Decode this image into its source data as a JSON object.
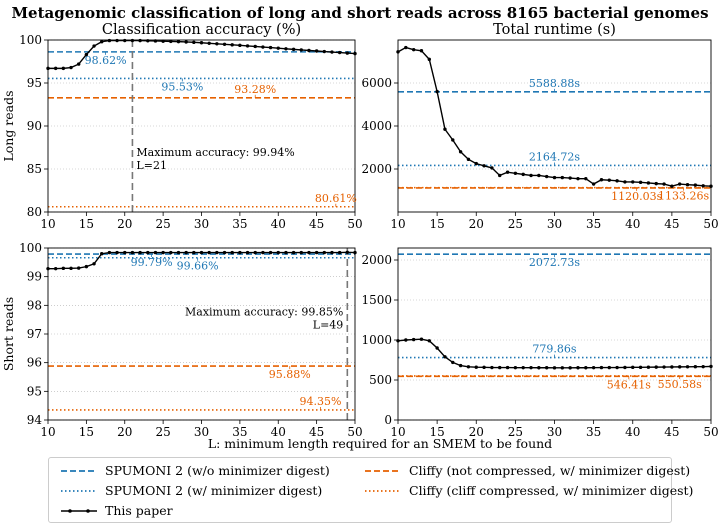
{
  "figure": {
    "title": "Metagenomic classification of long and short reads across 8165 bacterial genomes",
    "xlabel": "L: minimum length required for an SMEM to be found",
    "col_titles": [
      "Classification accuracy (%)",
      "Total runtime (s)"
    ],
    "row_labels": [
      "Long reads",
      "Short reads"
    ]
  },
  "colors": {
    "spumoni": "#1f77b4",
    "cliffy": "#e66100",
    "paper": "#000000",
    "grid": "#b0b0b0"
  },
  "legend": [
    {
      "label": "SPUMONI 2 (w/o minimizer digest)",
      "color": "#1f77b4",
      "style": "dashed"
    },
    {
      "label": "Cliffy (not compressed, w/ minimizer digest)",
      "color": "#e66100",
      "style": "dashed"
    },
    {
      "label": "SPUMONI 2 (w/  minimizer digest)",
      "color": "#1f77b4",
      "style": "dotted"
    },
    {
      "label": "Cliffy (cliff compressed, w/ minimizer digest)",
      "color": "#e66100",
      "style": "dotted"
    },
    {
      "label": "This paper",
      "color": "#000000",
      "style": "line-marker"
    }
  ],
  "chart_data": [
    {
      "type": "line",
      "panel": "long-accuracy",
      "title": "Classification accuracy (%)",
      "xlim": [
        10,
        50
      ],
      "ylim": [
        80,
        100
      ],
      "xticks": [
        10,
        15,
        20,
        25,
        30,
        35,
        40,
        45,
        50
      ],
      "yticks": [
        80,
        85,
        90,
        95,
        100
      ],
      "x": [
        10,
        11,
        12,
        13,
        14,
        15,
        16,
        17,
        18,
        19,
        20,
        21,
        22,
        23,
        24,
        25,
        26,
        27,
        28,
        29,
        30,
        31,
        32,
        33,
        34,
        35,
        36,
        37,
        38,
        39,
        40,
        41,
        42,
        43,
        44,
        45,
        46,
        47,
        48,
        49,
        50
      ],
      "series": [
        {
          "name": "This paper",
          "values": [
            96.7,
            96.7,
            96.7,
            96.8,
            97.2,
            98.3,
            99.3,
            99.8,
            99.93,
            99.94,
            99.94,
            99.94,
            99.93,
            99.91,
            99.89,
            99.86,
            99.84,
            99.81,
            99.77,
            99.73,
            99.68,
            99.62,
            99.56,
            99.5,
            99.44,
            99.38,
            99.31,
            99.25,
            99.18,
            99.12,
            99.05,
            98.98,
            98.91,
            98.85,
            98.78,
            98.72,
            98.66,
            98.6,
            98.54,
            98.48,
            98.42
          ]
        }
      ],
      "hlines": [
        {
          "name": "SPUMONI 2 (w/o minimizer digest)",
          "value": 98.62,
          "label": "98.62%",
          "style": "dashed",
          "color": "#1f77b4",
          "label_x": 17.5,
          "label_pos": "below"
        },
        {
          "name": "SPUMONI 2 (w/ minimizer digest)",
          "value": 95.53,
          "label": "95.53%",
          "style": "dotted",
          "color": "#1f77b4",
          "label_x": 27.5,
          "label_pos": "below"
        },
        {
          "name": "Cliffy (not compressed)",
          "value": 93.28,
          "label": "93.28%",
          "style": "dashed",
          "color": "#e66100",
          "label_x": 37.0,
          "label_pos": "above"
        },
        {
          "name": "Cliffy (cliff compressed)",
          "value": 80.61,
          "label": "80.61%",
          "style": "dotted",
          "color": "#e66100",
          "label_x": 47.5,
          "label_pos": "above"
        }
      ],
      "vline": {
        "x": 21,
        "label_lines": [
          "Maximum accuracy: 99.94%",
          "L=21"
        ],
        "label_side": "right",
        "label_y": 86.5
      }
    },
    {
      "type": "line",
      "panel": "long-runtime",
      "title": "Total runtime (s)",
      "xlim": [
        10,
        50
      ],
      "ylim": [
        0,
        8000
      ],
      "xticks": [
        10,
        15,
        20,
        25,
        30,
        35,
        40,
        45,
        50
      ],
      "yticks": [
        2000,
        4000,
        6000
      ],
      "x": [
        10,
        11,
        12,
        13,
        14,
        15,
        16,
        17,
        18,
        19,
        20,
        21,
        22,
        23,
        24,
        25,
        26,
        27,
        28,
        29,
        30,
        31,
        32,
        33,
        34,
        35,
        36,
        37,
        38,
        39,
        40,
        41,
        42,
        43,
        44,
        45,
        46,
        47,
        48,
        49,
        50
      ],
      "series": [
        {
          "name": "This paper",
          "values": [
            7450,
            7650,
            7550,
            7500,
            7100,
            5600,
            3850,
            3350,
            2800,
            2450,
            2250,
            2150,
            2050,
            1700,
            1850,
            1800,
            1750,
            1700,
            1700,
            1650,
            1600,
            1600,
            1580,
            1550,
            1550,
            1300,
            1500,
            1480,
            1450,
            1400,
            1400,
            1380,
            1350,
            1320,
            1300,
            1200,
            1300,
            1270,
            1250,
            1220,
            1200
          ]
        }
      ],
      "hlines": [
        {
          "name": "SPUMONI 2 (w/o minimizer digest)",
          "value": 5588.88,
          "label": "5588.88s",
          "style": "dashed",
          "color": "#1f77b4",
          "label_x": 30,
          "label_pos": "above"
        },
        {
          "name": "SPUMONI 2 (w/ minimizer digest)",
          "value": 2164.72,
          "label": "2164.72s",
          "style": "dotted",
          "color": "#1f77b4",
          "label_x": 30,
          "label_pos": "above"
        },
        {
          "name": "Cliffy (not compressed)",
          "value": 1120.03,
          "label": "1120.03s",
          "style": "dashed",
          "color": "#e66100",
          "label_x": 40.5,
          "label_pos": "below"
        },
        {
          "name": "Cliffy (cliff compressed)",
          "value": 1133.26,
          "label": "1133.26s",
          "style": "dotted",
          "color": "#e66100",
          "label_x": 46.5,
          "label_pos": "below"
        }
      ]
    },
    {
      "type": "line",
      "panel": "short-accuracy",
      "title": "",
      "xlim": [
        10,
        50
      ],
      "ylim": [
        94,
        100
      ],
      "xticks": [
        10,
        15,
        20,
        25,
        30,
        35,
        40,
        45,
        50
      ],
      "yticks": [
        94,
        95,
        96,
        97,
        98,
        99,
        100
      ],
      "x": [
        10,
        11,
        12,
        13,
        14,
        15,
        16,
        17,
        18,
        19,
        20,
        21,
        22,
        23,
        24,
        25,
        26,
        27,
        28,
        29,
        30,
        31,
        32,
        33,
        34,
        35,
        36,
        37,
        38,
        39,
        40,
        41,
        42,
        43,
        44,
        45,
        46,
        47,
        48,
        49,
        50
      ],
      "series": [
        {
          "name": "This paper",
          "values": [
            99.28,
            99.28,
            99.29,
            99.29,
            99.3,
            99.35,
            99.45,
            99.8,
            99.84,
            99.84,
            99.84,
            99.84,
            99.84,
            99.84,
            99.84,
            99.84,
            99.84,
            99.84,
            99.84,
            99.84,
            99.84,
            99.84,
            99.84,
            99.84,
            99.84,
            99.84,
            99.84,
            99.84,
            99.84,
            99.84,
            99.84,
            99.84,
            99.84,
            99.84,
            99.84,
            99.84,
            99.84,
            99.84,
            99.84,
            99.85,
            99.84
          ]
        }
      ],
      "hlines": [
        {
          "name": "SPUMONI 2 (w/o minimizer digest)",
          "value": 99.79,
          "label": "99.79%",
          "style": "dashed",
          "color": "#1f77b4",
          "label_x": 23.5,
          "label_pos": "below"
        },
        {
          "name": "SPUMONI 2 (w/ minimizer digest)",
          "value": 99.66,
          "label": "99.66%",
          "style": "dotted",
          "color": "#1f77b4",
          "label_x": 29.5,
          "label_pos": "below"
        },
        {
          "name": "Cliffy (not compressed)",
          "value": 95.88,
          "label": "95.88%",
          "style": "dashed",
          "color": "#e66100",
          "label_x": 41.5,
          "label_pos": "below"
        },
        {
          "name": "Cliffy (cliff compressed)",
          "value": 94.35,
          "label": "94.35%",
          "style": "dotted",
          "color": "#e66100",
          "label_x": 45.5,
          "label_pos": "above"
        }
      ],
      "vline": {
        "x": 49,
        "label_lines": [
          "Maximum accuracy: 99.85%",
          "L=49"
        ],
        "label_side": "left",
        "label_y": 97.65
      }
    },
    {
      "type": "line",
      "panel": "short-runtime",
      "title": "",
      "xlim": [
        10,
        50
      ],
      "ylim": [
        0,
        2150
      ],
      "xticks": [
        10,
        15,
        20,
        25,
        30,
        35,
        40,
        45,
        50
      ],
      "yticks": [
        0,
        500,
        1000,
        1500,
        2000
      ],
      "x": [
        10,
        11,
        12,
        13,
        14,
        15,
        16,
        17,
        18,
        19,
        20,
        21,
        22,
        23,
        24,
        25,
        26,
        27,
        28,
        29,
        30,
        31,
        32,
        33,
        34,
        35,
        36,
        37,
        38,
        39,
        40,
        41,
        42,
        43,
        44,
        45,
        46,
        47,
        48,
        49,
        50
      ],
      "series": [
        {
          "name": "This paper",
          "values": [
            990,
            1000,
            1005,
            1010,
            990,
            900,
            790,
            720,
            680,
            665,
            660,
            658,
            656,
            655,
            655,
            654,
            654,
            654,
            653,
            653,
            652,
            652,
            652,
            653,
            653,
            654,
            655,
            655,
            656,
            657,
            658,
            658,
            660,
            661,
            662,
            663,
            664,
            665,
            666,
            667,
            670
          ]
        }
      ],
      "hlines": [
        {
          "name": "SPUMONI 2 (w/o minimizer digest)",
          "value": 2072.73,
          "label": "2072.73s",
          "style": "dashed",
          "color": "#1f77b4",
          "label_x": 30,
          "label_pos": "below"
        },
        {
          "name": "SPUMONI 2 (w/ minimizer digest)",
          "value": 779.86,
          "label": "779.86s",
          "style": "dotted",
          "color": "#1f77b4",
          "label_x": 30,
          "label_pos": "above"
        },
        {
          "name": "Cliffy (not compressed)",
          "value": 546.41,
          "label": "546.41s",
          "style": "dashed",
          "color": "#e66100",
          "label_x": 39.5,
          "label_pos": "below"
        },
        {
          "name": "Cliffy (cliff compressed)",
          "value": 550.58,
          "label": "550.58s",
          "style": "dotted",
          "color": "#e66100",
          "label_x": 46,
          "label_pos": "below"
        }
      ]
    }
  ]
}
